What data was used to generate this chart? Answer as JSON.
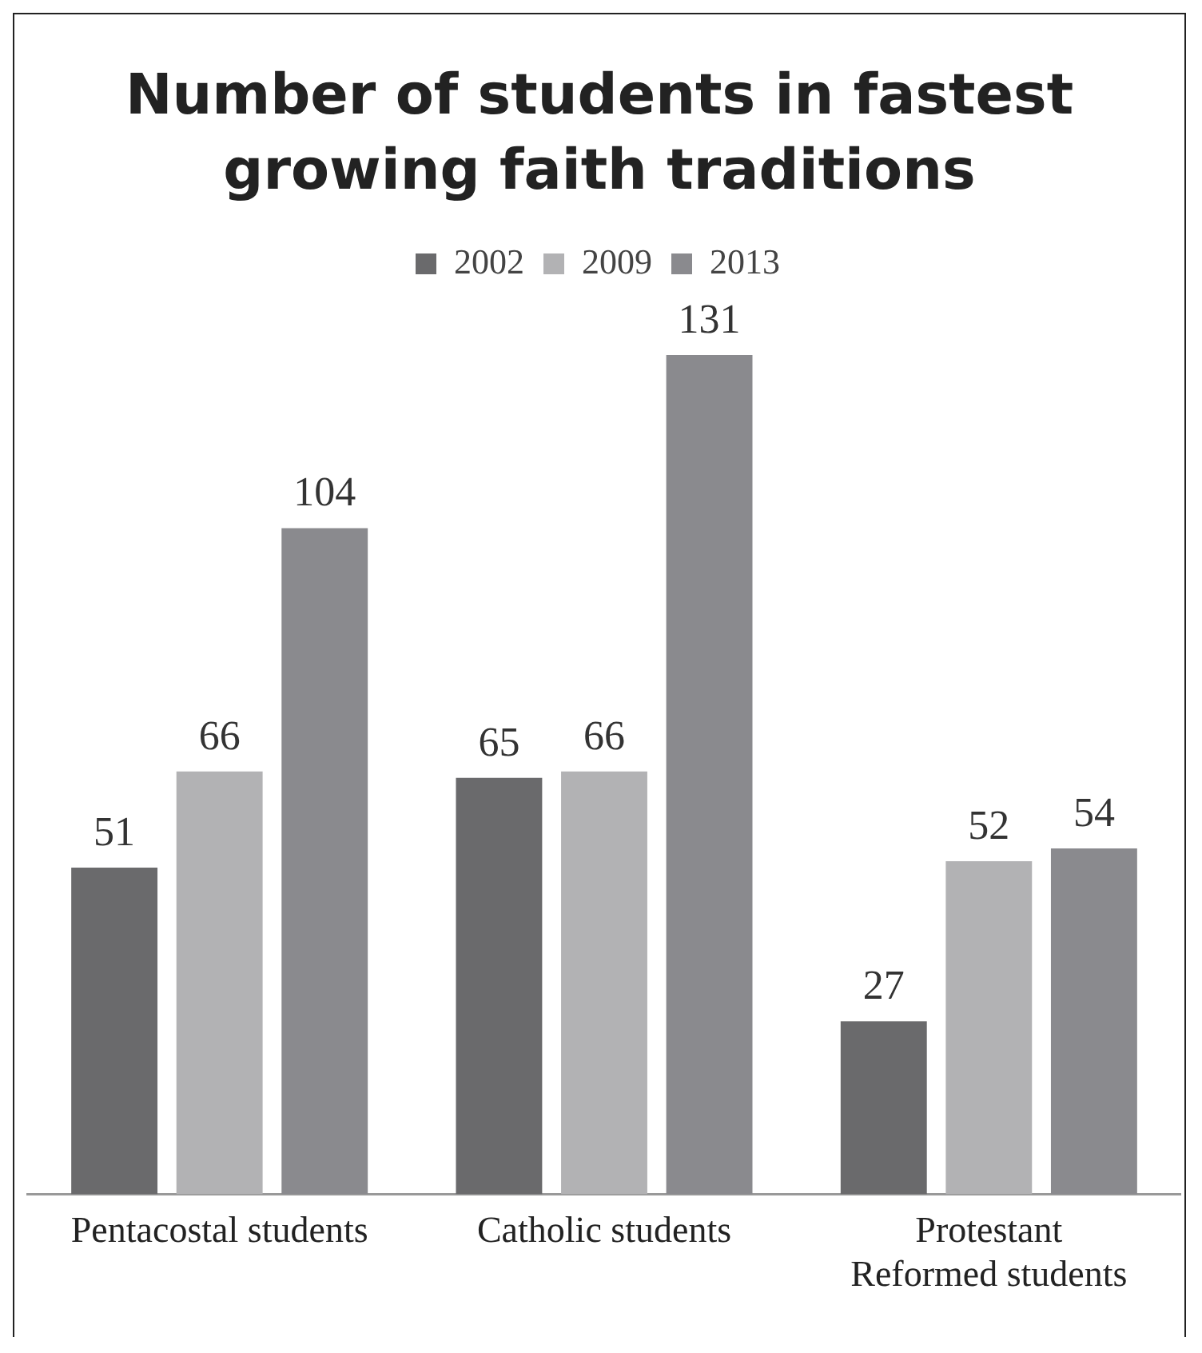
{
  "chart_data": {
    "type": "bar",
    "title": "Number of students in fastest growing faith traditions",
    "categories": [
      "Pentacostal students",
      "Catholic students",
      "Protestant Reformed students"
    ],
    "series": [
      {
        "name": "2002",
        "color": "#6a6a6c",
        "values": [
          51,
          65,
          27
        ]
      },
      {
        "name": "2009",
        "color": "#b2b2b4",
        "values": [
          66,
          66,
          52
        ]
      },
      {
        "name": "2013",
        "color": "#8a8a8e",
        "values": [
          104,
          131,
          54
        ]
      }
    ],
    "data_labels": true,
    "relative": false,
    "legend": "top",
    "grid": false
  }
}
